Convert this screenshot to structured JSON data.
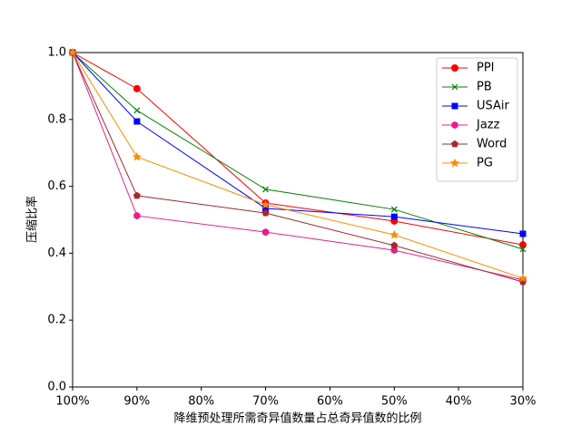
{
  "chart_data": {
    "type": "line",
    "x_label": "降维预处理所需奇异值数量占总奇异值数的比例",
    "y_label": "压缩比率",
    "x": [
      100,
      90,
      70,
      50,
      30
    ],
    "series": [
      {
        "name": "PPI",
        "color": "#ff0000",
        "marker": "circle",
        "values": [
          1.0,
          0.892,
          0.55,
          0.496,
          0.425
        ]
      },
      {
        "name": "PB",
        "color": "#008000",
        "marker": "x",
        "values": [
          1.0,
          0.827,
          0.591,
          0.531,
          0.412
        ]
      },
      {
        "name": "USAir",
        "color": "#0000ff",
        "marker": "square",
        "values": [
          1.0,
          0.794,
          0.534,
          0.509,
          0.458
        ]
      },
      {
        "name": "Jazz",
        "color": "#e91e8c",
        "marker": "hexagon",
        "values": [
          1.0,
          0.512,
          0.463,
          0.409,
          0.32
        ]
      },
      {
        "name": "Word",
        "color": "#a52a2a",
        "marker": "pentagon",
        "values": [
          1.0,
          0.572,
          0.52,
          0.423,
          0.314
        ]
      },
      {
        "name": "PG",
        "color": "#ff8c00",
        "marker": "star",
        "values": [
          1.0,
          0.688,
          0.545,
          0.455,
          0.325
        ]
      }
    ],
    "xlim": [
      100,
      30
    ],
    "xticks": [
      {
        "value": 100,
        "label": "100%"
      },
      {
        "value": 90,
        "label": "90%"
      },
      {
        "value": 80,
        "label": "80%"
      },
      {
        "value": 70,
        "label": "70%"
      },
      {
        "value": 60,
        "label": "60%"
      },
      {
        "value": 50,
        "label": "50%"
      },
      {
        "value": 40,
        "label": "40%"
      },
      {
        "value": 30,
        "label": "30%"
      }
    ],
    "ylim": [
      0,
      1
    ],
    "yticks": [
      {
        "value": 0,
        "label": "0.0"
      },
      {
        "value": 0.2,
        "label": "0.2"
      },
      {
        "value": 0.4,
        "label": "0.4"
      },
      {
        "value": 0.6,
        "label": "0.6"
      },
      {
        "value": 0.8,
        "label": "0.8"
      },
      {
        "value": 1,
        "label": "1.0"
      }
    ],
    "grid": false,
    "legend": "upper right"
  }
}
